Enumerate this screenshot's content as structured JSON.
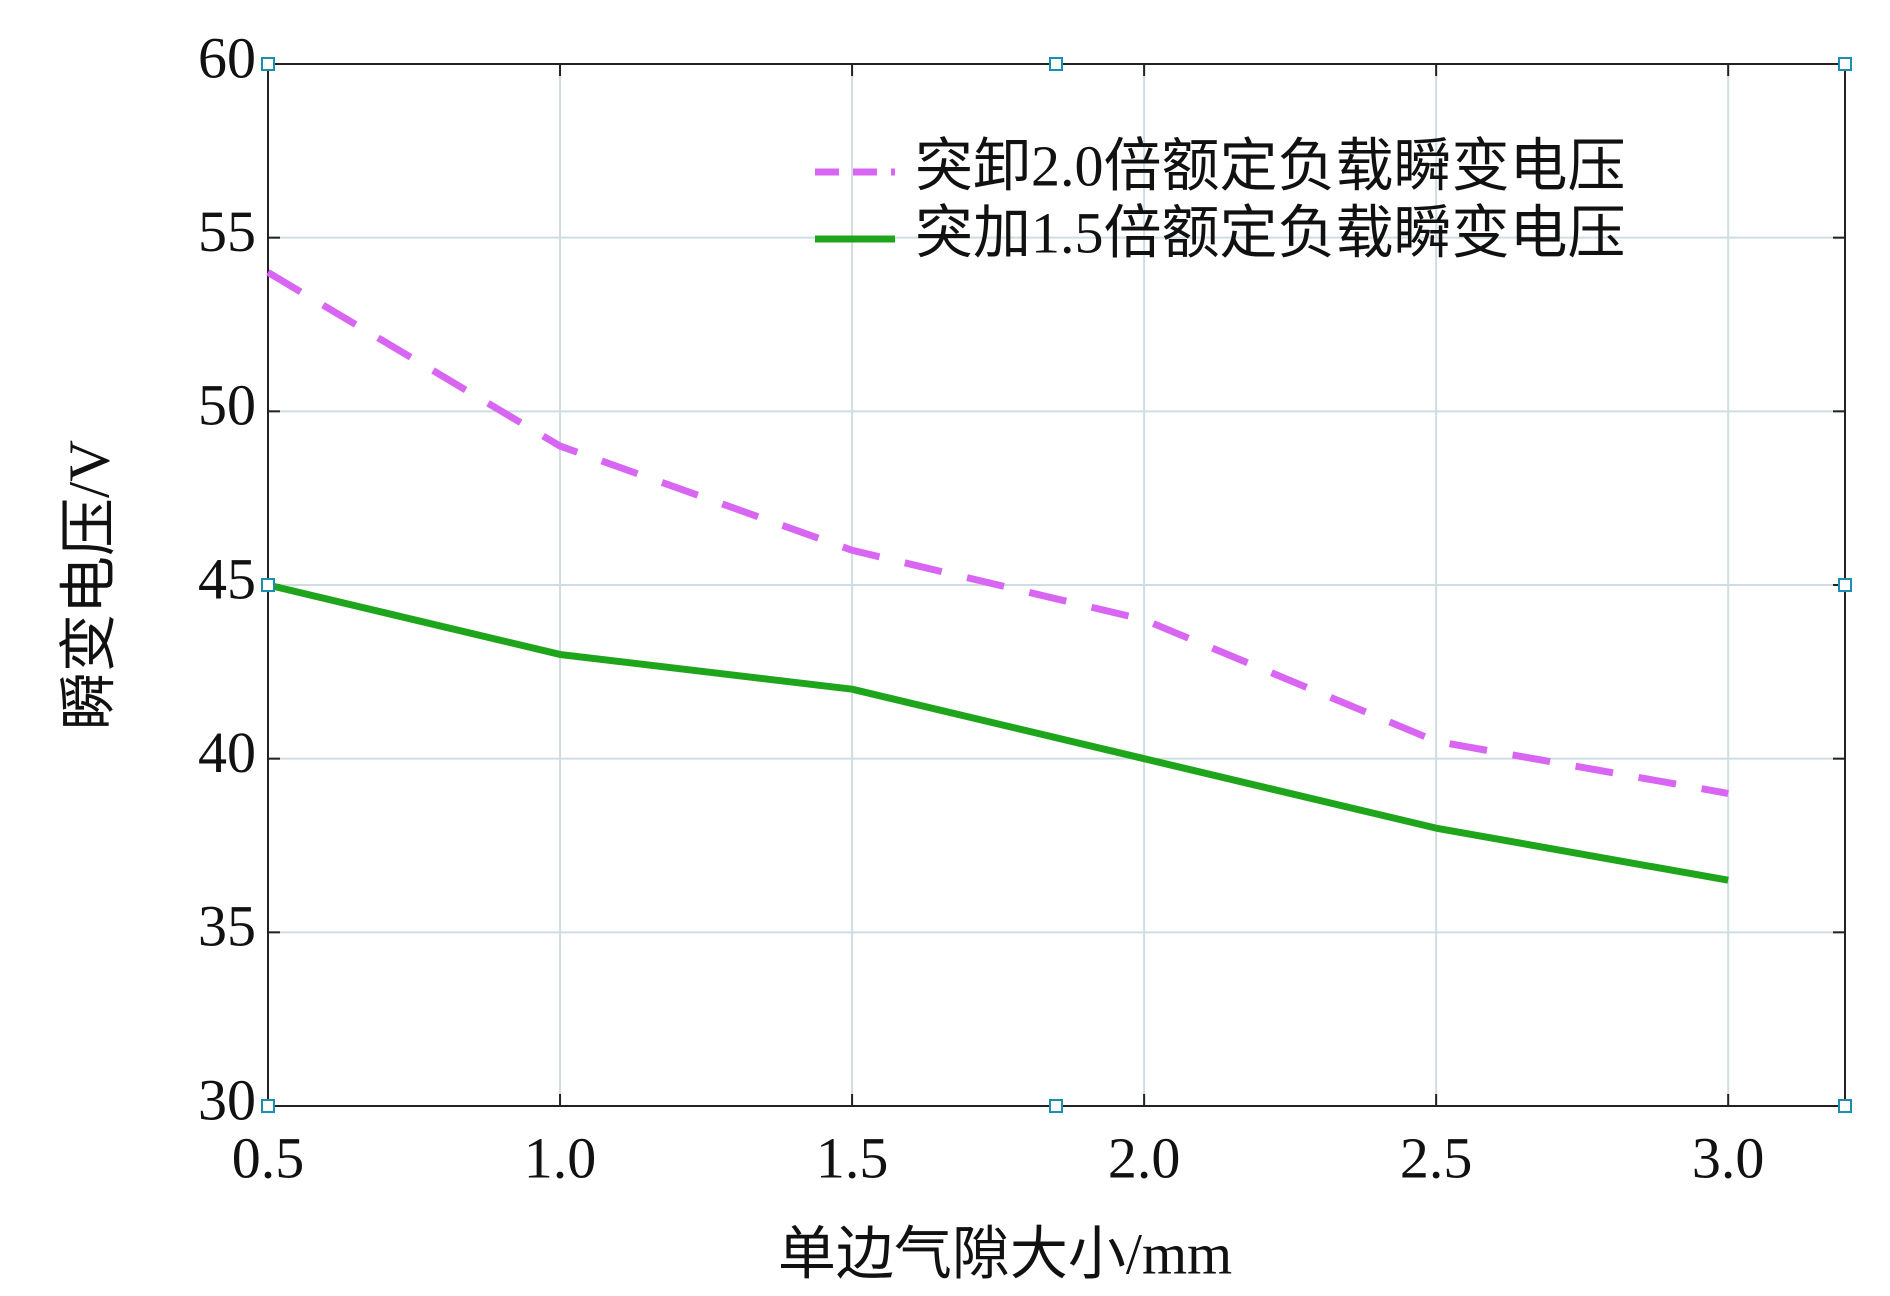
{
  "chart_data": {
    "type": "line",
    "x_label": "单边气隙大小/mm",
    "y_label": "瞬变电压/V",
    "x": [
      0.5,
      1.0,
      1.5,
      2.0,
      2.5,
      3.0
    ],
    "series": [
      {
        "name": "突卸2.0倍额定负载瞬变电压",
        "color": "#d966f2",
        "dash": true,
        "values": [
          54,
          49,
          46,
          44,
          40.5,
          39
        ]
      },
      {
        "name": "突加1.5倍额定负载瞬变电压",
        "color": "#1fa51c",
        "dash": false,
        "values": [
          45,
          43,
          42,
          40,
          38,
          36.5
        ]
      }
    ],
    "xlim": [
      0.5,
      3.2
    ],
    "ylim": [
      30,
      60
    ],
    "xticks": [
      0.5,
      {
        "value": 1,
        "label": "1.0"
      },
      1.5,
      {
        "value": 2,
        "label": "2.0"
      },
      2.5,
      {
        "value": 3,
        "label": "3.0"
      }
    ],
    "yticks": [
      30,
      35,
      40,
      45,
      50,
      55,
      60
    ],
    "grid": true,
    "legend": "upper-right"
  }
}
